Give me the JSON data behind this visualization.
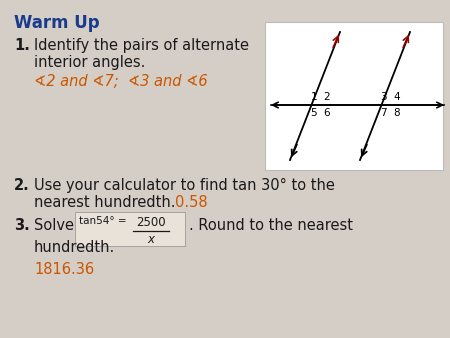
{
  "bg_color": "#d4cec6",
  "title": "Warm Up",
  "title_color": "#1a3a8c",
  "title_fontsize": 12,
  "body_fontsize": 10.5,
  "answer_color": "#cc5500",
  "text_color": "#1a1a1a",
  "diagram_bg": "#ffffff",
  "item1_num": "1.",
  "item1_text1": "Identify the pairs of alternate",
  "item1_text2": "interior angles.",
  "item1_answer": "∢2 and ∢7;  ∢3 and ∢6",
  "item2_num": "2.",
  "item2_text": "Use your calculator to find tan 30° to the",
  "item2_text2": "nearest hundredth.",
  "item2_answer": "0.58",
  "item3_num": "3.",
  "item3_text1": "Solve",
  "item3_formula_small": "tan54° =",
  "item3_num_frac": "2500",
  "item3_den_frac": "x",
  "item3_text2": ". Round to the nearest",
  "item3_text3": "hundredth.",
  "item3_answer": "1816.36"
}
